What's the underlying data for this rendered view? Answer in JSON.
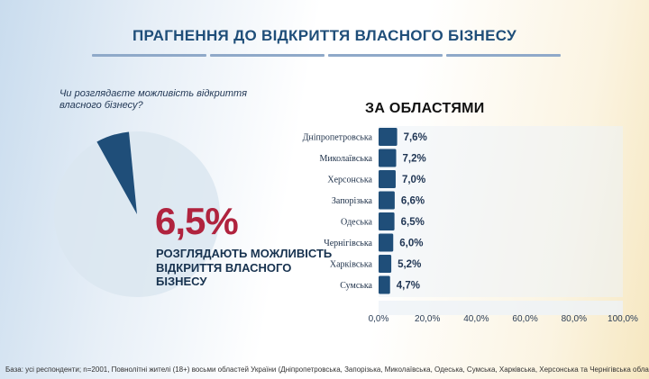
{
  "header": {
    "title": "ПРАГНЕННЯ ДО ВІДКРИТТЯ ВЛАСНОГО БІЗНЕСУ"
  },
  "question": "Чи розглядаєте можливість відкриття власного бізнесу?",
  "highlight": {
    "value_label": "6,5%",
    "caption": "РОЗГЛЯДАЮТЬ МОЖЛИВІСТЬ ВІДКРИТТЯ ВЛАСНОГО БІЗНЕСУ"
  },
  "regions_title": "ЗА ОБЛАСТЯМИ",
  "footnote": "База: усі респонденти; n=2001, Повнолітні жителі (18+) восьми областей України (Дніпропетровська, Запорізька, Миколаївська, Одеська, Сумська, Харківська, Херсонська та Чернігівська області)",
  "colors": {
    "bar": "#1f4e79",
    "pie_slice": "#1f4e79",
    "pie_rest": "#dbe6f0",
    "accent_red": "#b0233e",
    "track": "#edf3f8"
  },
  "chart_data": [
    {
      "type": "pie",
      "title": "",
      "slices": [
        {
          "label": "",
          "value": 6.5
        },
        {
          "label": "",
          "value": 93.5
        }
      ]
    },
    {
      "type": "bar",
      "orientation": "horizontal",
      "title": "ЗА ОБЛАСТЯМИ",
      "categories": [
        "Дніпропетровська",
        "Миколаївська",
        "Херсонська",
        "Запорізька",
        "Одеська",
        "Чернігівська",
        "Харківська",
        "Сумська"
      ],
      "values": [
        7.6,
        7.2,
        7.0,
        6.6,
        6.5,
        6.0,
        5.2,
        4.7
      ],
      "value_labels": [
        "7,6%",
        "7,2%",
        "7,0%",
        "6,6%",
        "6,5%",
        "6,0%",
        "5,2%",
        "4,7%"
      ],
      "xlim": [
        0,
        100
      ],
      "xticks": [
        "0,0%",
        "20,0%",
        "40,0%",
        "60,0%",
        "80,0%",
        "100,0%"
      ],
      "grid": false,
      "legend": "none"
    }
  ]
}
